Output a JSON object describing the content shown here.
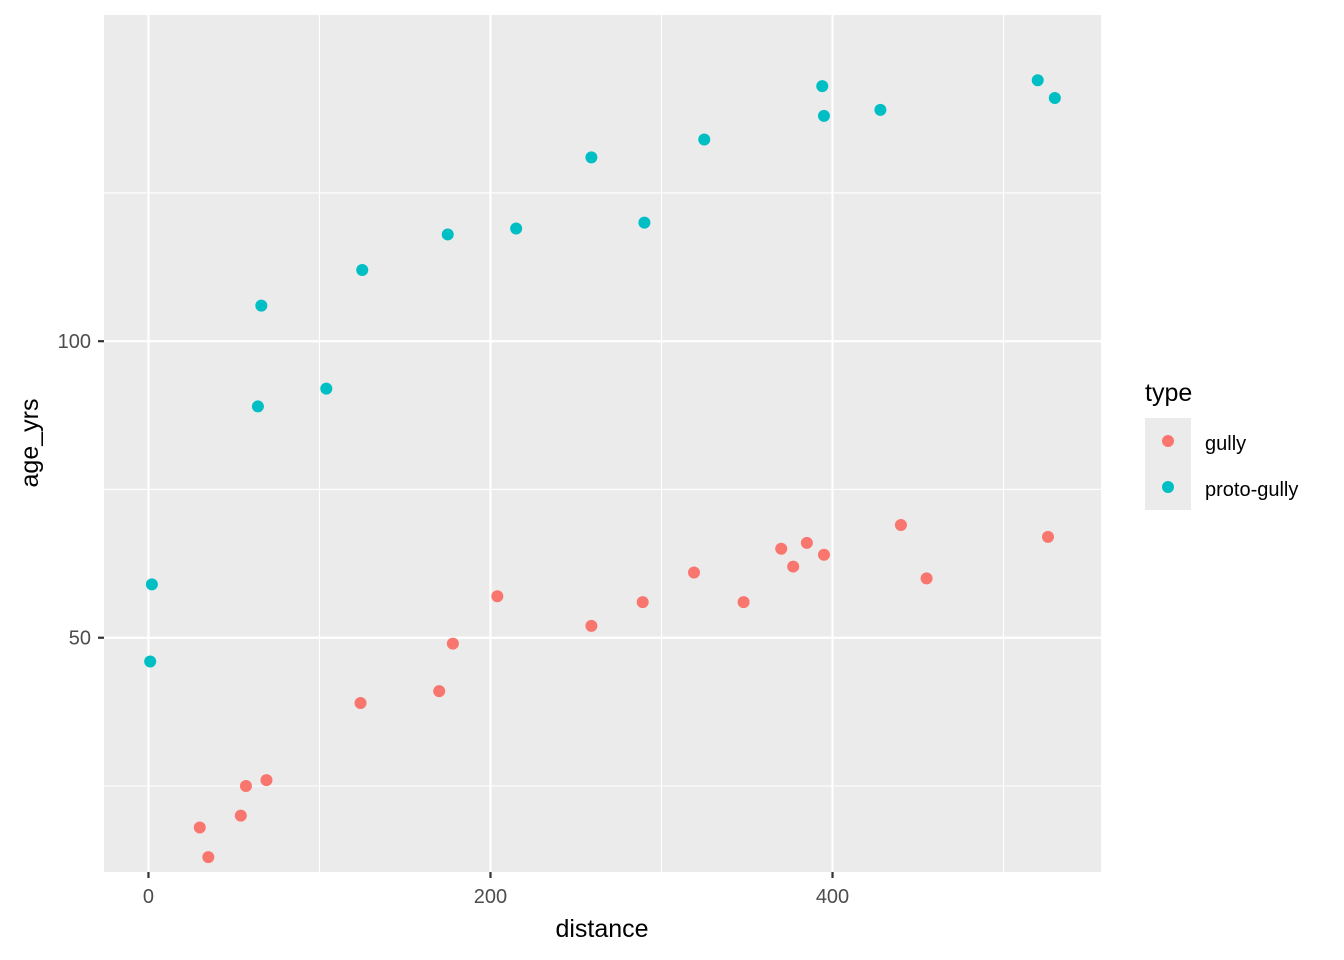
{
  "chart_data": {
    "type": "scatter",
    "xlabel": "distance",
    "ylabel": "age_yrs",
    "xlim": [
      -26,
      557
    ],
    "ylim": [
      10.5,
      155
    ],
    "x_ticks": [
      0,
      200,
      400
    ],
    "x_tick_labels": [
      "0",
      "200",
      "400"
    ],
    "x_minor": [
      100,
      300,
      500
    ],
    "y_ticks": [
      50,
      100
    ],
    "y_tick_labels": [
      "50",
      "100"
    ],
    "y_minor": [
      25,
      75,
      125
    ],
    "grid": true,
    "legend": {
      "title": "type",
      "position": "right",
      "entries": [
        "gully",
        "proto-gully"
      ]
    },
    "series": [
      {
        "name": "gully",
        "color": "#F8766D",
        "points": [
          [
            30,
            18
          ],
          [
            35,
            13
          ],
          [
            54,
            20
          ],
          [
            57,
            25
          ],
          [
            69,
            26
          ],
          [
            124,
            39
          ],
          [
            170,
            41
          ],
          [
            178,
            49
          ],
          [
            204,
            57
          ],
          [
            259,
            52
          ],
          [
            289,
            56
          ],
          [
            319,
            61
          ],
          [
            348,
            56
          ],
          [
            370,
            65
          ],
          [
            377,
            62
          ],
          [
            385,
            66
          ],
          [
            395,
            64
          ],
          [
            440,
            69
          ],
          [
            455,
            60
          ],
          [
            526,
            67
          ]
        ]
      },
      {
        "name": "proto-gully",
        "color": "#00BFC4",
        "points": [
          [
            1,
            46
          ],
          [
            2,
            59
          ],
          [
            64,
            89
          ],
          [
            66,
            106
          ],
          [
            104,
            92
          ],
          [
            125,
            112
          ],
          [
            175,
            118
          ],
          [
            215,
            119
          ],
          [
            259,
            131
          ],
          [
            290,
            120
          ],
          [
            325,
            134
          ],
          [
            394,
            143
          ],
          [
            395,
            138
          ],
          [
            428,
            139
          ],
          [
            520,
            144
          ],
          [
            530,
            141
          ]
        ]
      }
    ]
  }
}
